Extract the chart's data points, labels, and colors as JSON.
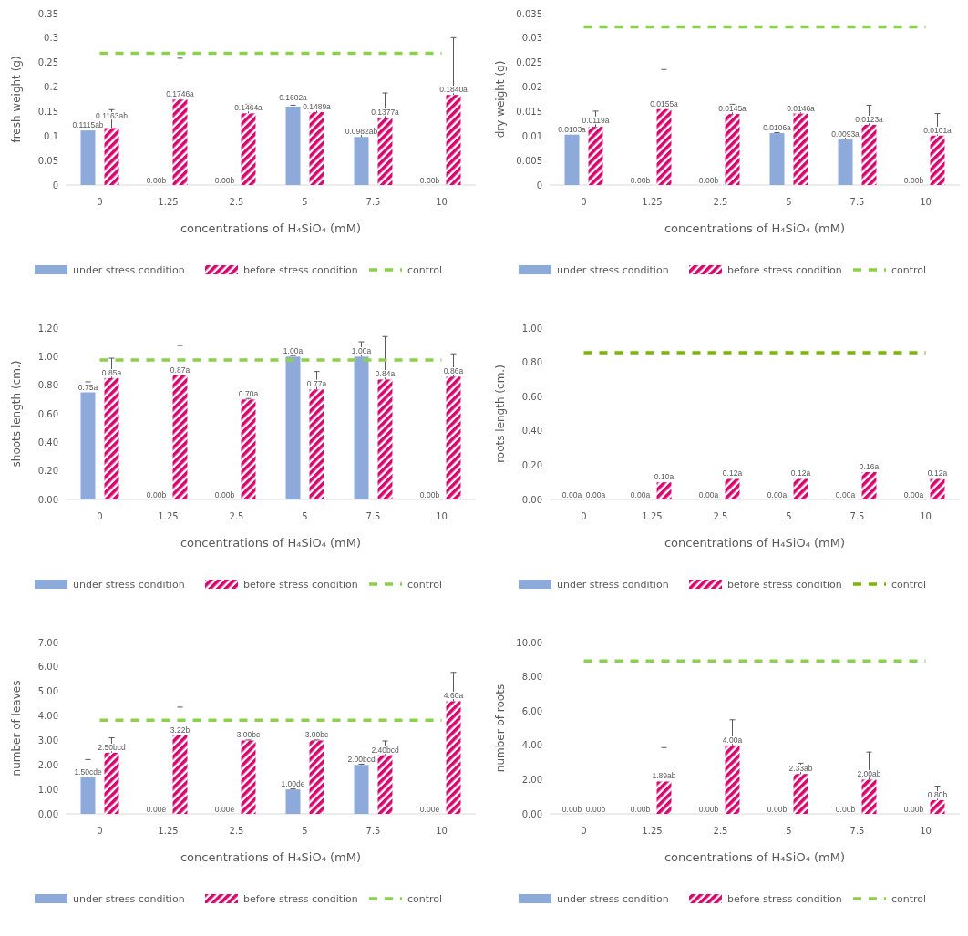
{
  "chart_data": [
    {
      "type": "bar",
      "xlabel": "concentrations of H₄SiO₄ (mM)",
      "ylabel": "fresh weight (g)",
      "categories": [
        "0",
        "1.25",
        "2.5",
        "5",
        "7.5",
        "10"
      ],
      "ylim": [
        0,
        0.35
      ],
      "yticks": [
        0,
        0.05,
        0.1,
        0.15,
        0.2,
        0.25,
        0.3,
        0.35
      ],
      "legend": "bottom",
      "series": [
        {
          "name": "under stress condition",
          "color": "#8eaadb",
          "values": [
            0.1115,
            0,
            0,
            0.1602,
            0.0982,
            0
          ],
          "errors": [
            [
              0.1115,
              0.127
            ],
            null,
            null,
            [
              0.1602,
              0.163
            ],
            [
              0.0982,
              0.11
            ],
            null
          ],
          "value_labels": [
            "0.1115ab",
            "0.00b",
            "0.00b",
            "0.1602a",
            "0.0982ab",
            "0.00b"
          ]
        },
        {
          "name": "before stress condition",
          "color": "#d6086e",
          "values": [
            0.1163,
            0.1746,
            0.1464,
            0.1489,
            0.1377,
            0.184
          ],
          "errors": [
            [
              0.1163,
              0.154
            ],
            [
              0.1746,
              0.259
            ],
            [
              0.1464,
              0.165
            ],
            [
              0.1489,
              0.163
            ],
            [
              0.1377,
              0.188
            ],
            [
              0.184,
              0.301
            ]
          ],
          "value_labels": [
            "0.1163ab",
            "0.1746a",
            "0.1464a",
            "0.1489a",
            "0.1377a",
            "0.1840a"
          ]
        },
        {
          "name": "control",
          "type": "line",
          "line_style": "dashed",
          "color": "#8cd04c",
          "values": [
            0.269,
            0.269,
            0.269,
            0.269,
            0.269,
            0.269
          ]
        }
      ]
    },
    {
      "type": "bar",
      "xlabel": "concentrations of H₄SiO₄ (mM)",
      "ylabel": "dry weight (g)",
      "categories": [
        "0",
        "1.25",
        "2.5",
        "5",
        "7.5",
        "10"
      ],
      "ylim": [
        0,
        0.035
      ],
      "yticks": [
        0,
        0.005,
        0.01,
        0.015,
        0.02,
        0.025,
        0.03,
        0.035
      ],
      "legend": "bottom",
      "series": [
        {
          "name": "under stress condition",
          "color": "#8eaadb",
          "values": [
            0.0103,
            0,
            0,
            0.0106,
            0.0093,
            0
          ],
          "errors": [
            [
              0.0103,
              0.0117
            ],
            null,
            null,
            [
              0.0106,
              0.0107
            ],
            [
              0.0093,
              0.0103
            ],
            null
          ],
          "value_labels": [
            "0.0103a",
            "0.00b",
            "0.00b",
            "0.0106a",
            "0.0093a",
            "0.00b"
          ]
        },
        {
          "name": "before stress condition",
          "color": "#d6086e",
          "values": [
            0.0119,
            0.0155,
            0.0145,
            0.0146,
            0.0123,
            0.0101
          ],
          "errors": [
            [
              0.0119,
              0.0151
            ],
            [
              0.0155,
              0.0236
            ],
            [
              0.0145,
              0.0165
            ],
            [
              0.0146,
              0.0159
            ],
            [
              0.0123,
              0.0163
            ],
            [
              0.0101,
              0.0146
            ]
          ],
          "value_labels": [
            "0.0119a",
            "0.0155a",
            "0.0145a",
            "0.0146a",
            "0.0123a",
            "0.0101a"
          ]
        },
        {
          "name": "control",
          "type": "line",
          "line_style": "dashed",
          "color": "#8cd04c",
          "values": [
            0.0323,
            0.0323,
            0.0323,
            0.0323,
            0.0323,
            0.0323
          ]
        }
      ]
    },
    {
      "type": "bar",
      "xlabel": "concentrations of H₄SiO₄ (mM)",
      "ylabel": "shoots length (cm.)",
      "categories": [
        "0",
        "1.25",
        "2.5",
        "5",
        "7.5",
        "10"
      ],
      "ylim": [
        0,
        1.2
      ],
      "yticks": [
        {
          "value": 0,
          "label": "0.00"
        },
        {
          "value": 0.2,
          "label": "0.20"
        },
        {
          "value": 0.4,
          "label": "0.40"
        },
        {
          "value": 0.6,
          "label": "0.60"
        },
        {
          "value": 0.8,
          "label": "0.80"
        },
        {
          "value": 1,
          "label": "1.00"
        },
        {
          "value": 1.2,
          "label": "1.20"
        }
      ],
      "legend": "bottom",
      "series": [
        {
          "name": "under stress condition",
          "color": "#8eaadb",
          "values": [
            0.75,
            0,
            0,
            1.0,
            1.0,
            0
          ],
          "errors": [
            [
              0.75,
              0.824
            ],
            null,
            null,
            [
              1.0,
              1.007
            ],
            [
              1.0,
              1.104
            ],
            null
          ],
          "value_labels": [
            "0.75a",
            "0.00b",
            "0.00b",
            "1.00a",
            "1.00a",
            "0.00b"
          ]
        },
        {
          "name": "before stress condition",
          "color": "#d6086e",
          "values": [
            0.85,
            0.87,
            0.7,
            0.77,
            0.84,
            0.86
          ],
          "errors": [
            [
              0.85,
              0.989
            ],
            [
              0.87,
              1.078
            ],
            [
              0.7,
              0.707
            ],
            [
              0.77,
              0.896
            ],
            [
              0.84,
              1.141
            ],
            [
              0.86,
              1.02
            ]
          ],
          "value_labels": [
            "0.85a",
            "0.87a",
            "0.70a",
            "0.77a",
            "0.84a",
            "0.86a"
          ]
        },
        {
          "name": "control",
          "type": "line",
          "line_style": "dashed",
          "color": "#8cd04c",
          "values": [
            0.976,
            0.976,
            0.976,
            0.976,
            0.976,
            0.976
          ]
        }
      ]
    },
    {
      "type": "bar",
      "xlabel": "concentrations of H₄SiO₄ (mM)",
      "ylabel": "roots length (cm.)",
      "categories": [
        "0",
        "1.25",
        "2.5",
        "5",
        "7.5",
        "10"
      ],
      "ylim": [
        0,
        1
      ],
      "yticks": [
        {
          "value": 0,
          "label": "0.00"
        },
        {
          "value": 0.2,
          "label": "0.20"
        },
        {
          "value": 0.4,
          "label": "0.40"
        },
        {
          "value": 0.6,
          "label": "0.60"
        },
        {
          "value": 0.8,
          "label": "0.80"
        },
        {
          "value": 1,
          "label": "1.00"
        }
      ],
      "legend": "bottom",
      "series": [
        {
          "name": "under stress condition",
          "color": "#8eaadb",
          "values": [
            0,
            0,
            0,
            0,
            0,
            0
          ],
          "value_labels": [
            "0.00a",
            "0.00a",
            "0.00a",
            "0.00a",
            "0.00a",
            "0.00a"
          ]
        },
        {
          "name": "before stress condition",
          "color": "#d6086e",
          "values": [
            0,
            0.1,
            0.12,
            0.12,
            0.16,
            0.12
          ],
          "value_labels": [
            "0.00a",
            "0.10a",
            "0.12a",
            "0.12a",
            "0.16a",
            "0.12a"
          ]
        },
        {
          "name": "control",
          "type": "line",
          "line_style": "dashed",
          "color": "#7ab800",
          "values": [
            0.857,
            0.857,
            0.857,
            0.857,
            0.857,
            0.857
          ]
        }
      ]
    },
    {
      "type": "bar",
      "xlabel": "concentrations of H₄SiO₄ (mM)",
      "ylabel": "number of leaves",
      "categories": [
        "0",
        "1.25",
        "2.5",
        "5",
        "7.5",
        "10"
      ],
      "ylim": [
        0,
        7
      ],
      "yticks": [
        {
          "value": 0,
          "label": "0.00"
        },
        {
          "value": 1,
          "label": "1.00"
        },
        {
          "value": 2,
          "label": "2.00"
        },
        {
          "value": 3,
          "label": "3.00"
        },
        {
          "value": 4,
          "label": "4.00"
        },
        {
          "value": 5,
          "label": "5.00"
        },
        {
          "value": 6,
          "label": "6.00"
        },
        {
          "value": 7,
          "label": "7.00"
        }
      ],
      "legend": "bottom",
      "series": [
        {
          "name": "under stress condition",
          "color": "#8eaadb",
          "values": [
            1.5,
            0,
            0,
            1.0,
            2.0,
            0
          ],
          "errors": [
            [
              1.5,
              2.22
            ],
            null,
            null,
            [
              1.0,
              1.02
            ],
            [
              2.0,
              2.03
            ],
            null
          ],
          "value_labels": [
            "1.50cde",
            "0.00e",
            "0.00e",
            "1.00de",
            "2.00bcd",
            "0.00e"
          ]
        },
        {
          "name": "before stress condition",
          "color": "#d6086e",
          "values": [
            2.5,
            3.22,
            3.0,
            3.0,
            2.4,
            4.6
          ],
          "errors": [
            [
              2.5,
              3.11
            ],
            [
              3.22,
              4.36
            ],
            [
              3.0,
              3.02
            ],
            [
              3.0,
              3.02
            ],
            [
              2.4,
              2.98
            ],
            [
              4.6,
              5.78
            ]
          ],
          "value_labels": [
            "2.50bcd",
            "3.22b",
            "3.00bc",
            "3.00bc",
            "2.40bcd",
            "4.60a"
          ]
        },
        {
          "name": "control",
          "type": "line",
          "line_style": "dashed",
          "color": "#8cd04c",
          "values": [
            3.83,
            3.83,
            3.83,
            3.83,
            3.83,
            3.83
          ]
        }
      ]
    },
    {
      "type": "bar",
      "xlabel": "concentrations of H₄SiO₄ (mM)",
      "ylabel": "number of roots",
      "categories": [
        "0",
        "1.25",
        "2.5",
        "5",
        "7.5",
        "10"
      ],
      "ylim": [
        0,
        10
      ],
      "yticks": [
        {
          "value": 0,
          "label": "0.00"
        },
        {
          "value": 2,
          "label": "2.00"
        },
        {
          "value": 4,
          "label": "4.00"
        },
        {
          "value": 6,
          "label": "6.00"
        },
        {
          "value": 8,
          "label": "8.00"
        },
        {
          "value": 10,
          "label": "10.00"
        }
      ],
      "legend": "bottom",
      "series": [
        {
          "name": "under stress condition",
          "color": "#8eaadb",
          "values": [
            0,
            0,
            0,
            0,
            0,
            0
          ],
          "value_labels": [
            "0.00b",
            "0.00b",
            "0.00b",
            "0.00b",
            "0.00b",
            "0.00b"
          ]
        },
        {
          "name": "before stress condition",
          "color": "#d6086e",
          "values": [
            0,
            1.89,
            4.0,
            2.33,
            2.0,
            0.8
          ],
          "errors": [
            null,
            [
              1.89,
              3.87
            ],
            [
              4.0,
              5.49
            ],
            [
              2.33,
              2.96
            ],
            [
              2.0,
              3.61
            ],
            [
              0.8,
              1.62
            ]
          ],
          "value_labels": [
            "0.00b",
            "1.89ab",
            "4.00a",
            "2.33ab",
            "2.00ab",
            "0.80b"
          ]
        },
        {
          "name": "control",
          "type": "line",
          "line_style": "dashed",
          "color": "#8cd04c",
          "values": [
            8.92,
            8.92,
            8.92,
            8.92,
            8.92,
            8.92
          ]
        }
      ]
    }
  ]
}
